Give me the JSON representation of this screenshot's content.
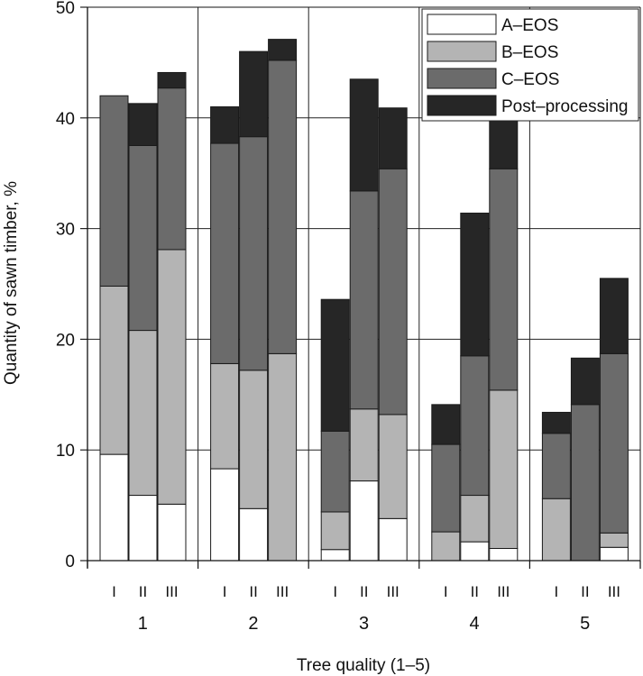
{
  "chart_data": {
    "type": "bar",
    "stacked": true,
    "xlabel": "Tree quality (1–5)",
    "ylabel": "Quantity of sawn timber, %",
    "ylim": [
      0,
      50
    ],
    "yticks": [
      0,
      10,
      20,
      30,
      40,
      50
    ],
    "grid": true,
    "legend_position": "top-right",
    "groups": [
      "1",
      "2",
      "3",
      "4",
      "5"
    ],
    "subcategories": [
      "I",
      "II",
      "III"
    ],
    "series": [
      {
        "name": "A–EOS",
        "color": "#ffffff",
        "values": [
          [
            9.6,
            5.9,
            5.1
          ],
          [
            8.3,
            4.7,
            0.0
          ],
          [
            1.0,
            7.2,
            3.8
          ],
          [
            0.0,
            1.7,
            1.1
          ],
          [
            0.0,
            0.0,
            1.2
          ]
        ]
      },
      {
        "name": "B–EOS",
        "color": "#b4b4b4",
        "values": [
          [
            15.2,
            14.9,
            23.0
          ],
          [
            9.5,
            12.5,
            18.7
          ],
          [
            3.4,
            6.5,
            9.4
          ],
          [
            2.6,
            4.2,
            14.3
          ],
          [
            5.6,
            0.0,
            1.3
          ]
        ]
      },
      {
        "name": "C–EOS",
        "color": "#6b6b6b",
        "values": [
          [
            17.2,
            16.7,
            14.6
          ],
          [
            19.9,
            21.1,
            26.5
          ],
          [
            7.3,
            19.7,
            22.2
          ],
          [
            7.9,
            12.6,
            20.0
          ],
          [
            5.9,
            14.1,
            16.2
          ]
        ]
      },
      {
        "name": "Post–processing",
        "color": "#262626",
        "values": [
          [
            0.0,
            3.8,
            1.4
          ],
          [
            3.3,
            7.7,
            1.9
          ],
          [
            11.9,
            10.1,
            5.5
          ],
          [
            3.6,
            12.9,
            4.6
          ],
          [
            1.9,
            4.2,
            6.8
          ]
        ]
      }
    ]
  }
}
